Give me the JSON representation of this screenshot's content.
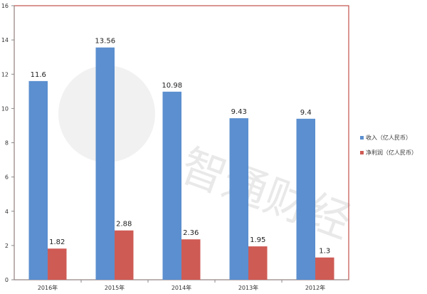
{
  "chart_data": {
    "type": "bar",
    "title": "",
    "xlabel": "",
    "ylabel": "",
    "categories": [
      "2016年",
      "2015年",
      "2014年",
      "2013年",
      "2012年"
    ],
    "series": [
      {
        "name": "收入（亿人民币）",
        "values": [
          11.6,
          13.56,
          10.98,
          9.43,
          9.4
        ],
        "labels": [
          "11.6",
          "13.56",
          "10.98",
          "9.43",
          "9.4"
        ],
        "color": "#5b8fcf"
      },
      {
        "name": "净利润（亿人民币）",
        "values": [
          1.82,
          2.88,
          2.36,
          1.95,
          1.3
        ],
        "labels": [
          "1.82",
          "2.88",
          "2.36",
          "1.95",
          "1.3"
        ],
        "color": "#cf5b55"
      }
    ],
    "ylim": [
      0,
      16
    ],
    "yticks": [
      0,
      2,
      4,
      6,
      8,
      10,
      12,
      14,
      16
    ],
    "grid": false,
    "legend_placement": "right"
  },
  "watermark": "智通财经",
  "colors": {
    "plot_border": "#c0504d",
    "axis": "#888888"
  }
}
